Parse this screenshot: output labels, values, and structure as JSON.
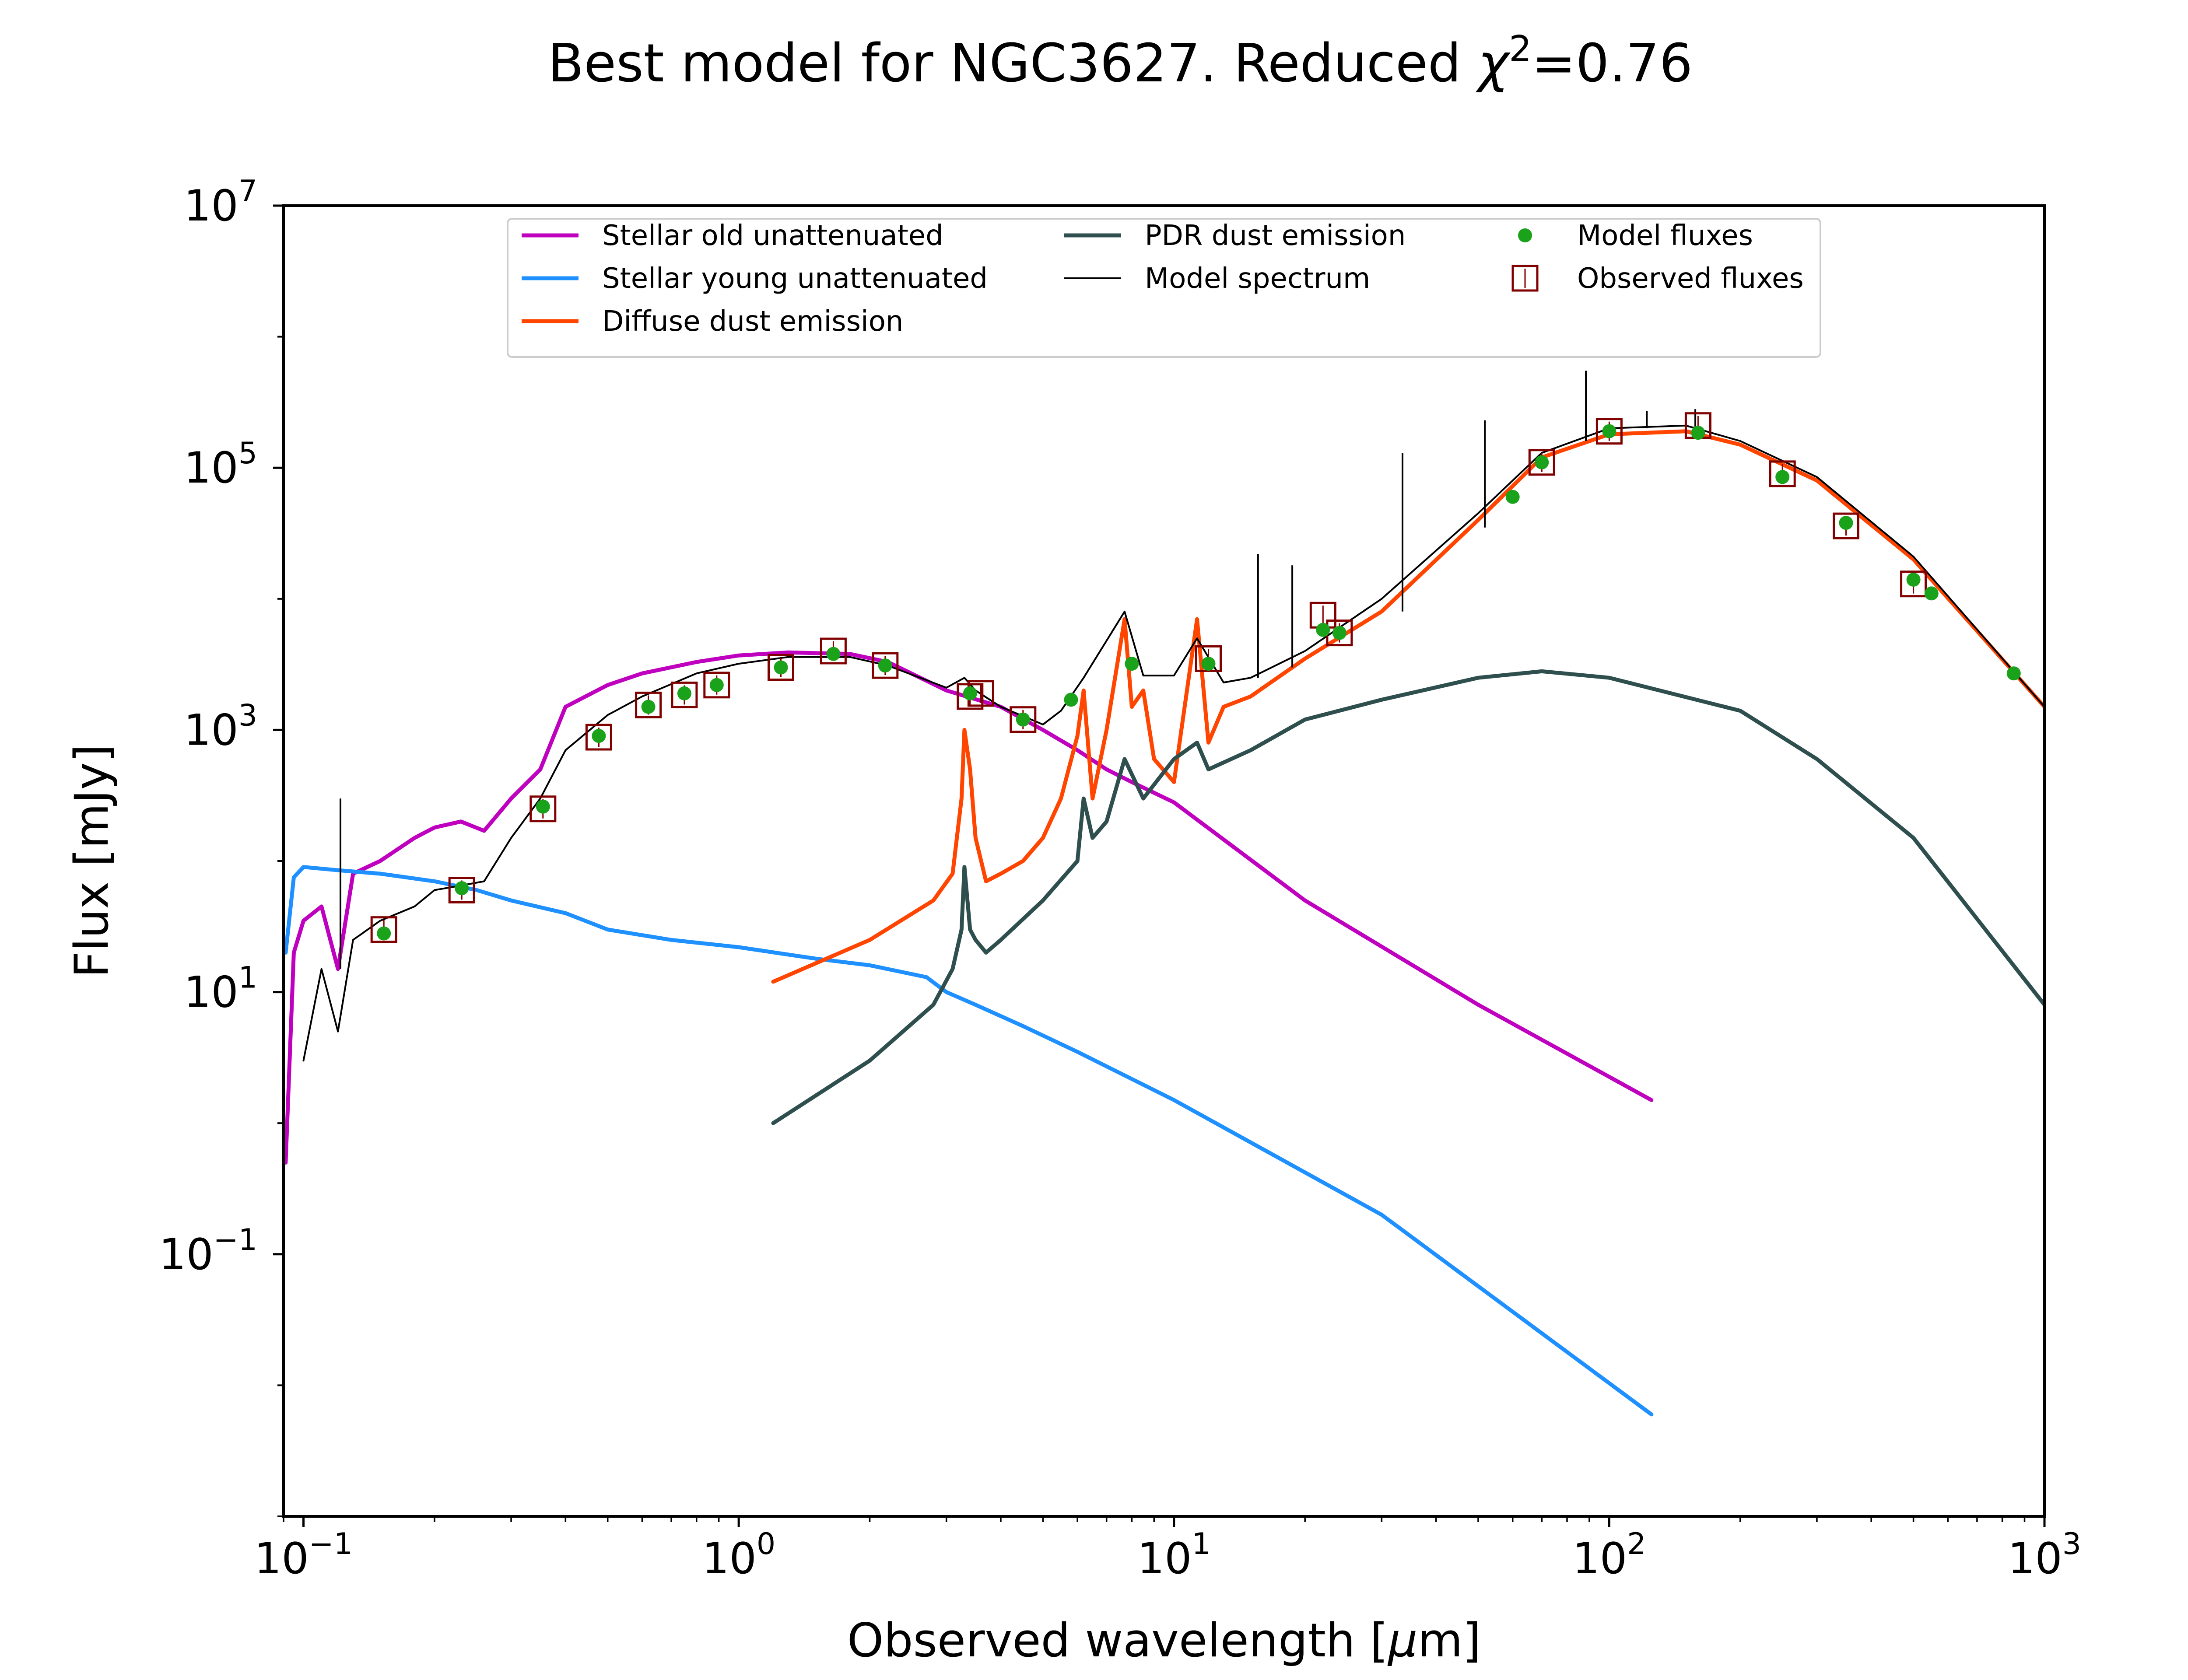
{
  "chart_data": {
    "type": "line",
    "title": "Best model for NGC3627. Reduced χ²=0.76",
    "title_parts": {
      "prefix": "Best model for NGC3627. Reduced ",
      "chi": "χ",
      "sup": "2",
      "suffix": "=0.76"
    },
    "xlabel": "Observed wavelength [μm]",
    "xlabel_parts": {
      "prefix": "Observed wavelength [",
      "mu": "μ",
      "suffix": "m]"
    },
    "ylabel": "Flux [mJy]",
    "xscale": "log",
    "yscale": "log",
    "xlim": [
      0.09,
      1000
    ],
    "ylim": [
      0.001,
      10000000
    ],
    "x_ticks": [
      {
        "value": 0.1,
        "base": "10",
        "exp": "−1"
      },
      {
        "value": 1,
        "base": "10",
        "exp": "0"
      },
      {
        "value": 10,
        "base": "10",
        "exp": "1"
      },
      {
        "value": 100,
        "base": "10",
        "exp": "2"
      },
      {
        "value": 1000,
        "base": "10",
        "exp": "3"
      }
    ],
    "y_ticks": [
      {
        "value": 0.1,
        "base": "10",
        "exp": "−1"
      },
      {
        "value": 10,
        "base": "10",
        "exp": "1"
      },
      {
        "value": 1000,
        "base": "10",
        "exp": "3"
      },
      {
        "value": 100000,
        "base": "10",
        "exp": "5"
      },
      {
        "value": 10000000,
        "base": "10",
        "exp": "7"
      }
    ],
    "grid": false,
    "legend_position": "top",
    "series": [
      {
        "name": "Stellar old unattenuated",
        "color": "#bf00bf",
        "x": [
          0.091,
          0.095,
          0.1,
          0.11,
          0.12,
          0.13,
          0.15,
          0.18,
          0.2,
          0.23,
          0.26,
          0.3,
          0.35,
          0.4,
          0.5,
          0.6,
          0.8,
          1.0,
          1.3,
          1.8,
          2.2,
          3.0,
          4.0,
          5.0,
          6.0,
          7.0,
          8.0,
          10,
          20,
          50,
          125
        ],
        "y": [
          0.5,
          20,
          35,
          45,
          15,
          80,
          100,
          150,
          180,
          200,
          170,
          300,
          500,
          1500,
          2200,
          2700,
          3300,
          3700,
          3900,
          3800,
          3300,
          2000,
          1500,
          1000,
          700,
          500,
          400,
          280,
          50,
          8,
          1.5
        ]
      },
      {
        "name": "Stellar young unattenuated",
        "color": "#1e90ff",
        "x": [
          0.091,
          0.095,
          0.1,
          0.12,
          0.15,
          0.2,
          0.25,
          0.3,
          0.4,
          0.5,
          0.7,
          1.0,
          1.5,
          2.0,
          2.7,
          3.0,
          3.5,
          4.5,
          6.0,
          10,
          30,
          125
        ],
        "y": [
          20,
          75,
          90,
          85,
          80,
          70,
          60,
          50,
          40,
          30,
          25,
          22,
          18,
          16,
          13,
          10,
          8,
          5.5,
          3.5,
          1.5,
          0.2,
          0.006
        ]
      },
      {
        "name": "Diffuse dust emission",
        "color": "#ff4500",
        "x": [
          1.2,
          2.0,
          2.8,
          3.1,
          3.25,
          3.3,
          3.4,
          3.5,
          3.7,
          4.0,
          4.5,
          5.0,
          5.5,
          6.0,
          6.2,
          6.5,
          7.0,
          7.7,
          8.0,
          8.5,
          9.0,
          10,
          11.3,
          12,
          13,
          15,
          20,
          30,
          50,
          70,
          100,
          150,
          200,
          300,
          500,
          1000
        ],
        "y": [
          12,
          25,
          50,
          80,
          300,
          1000,
          500,
          150,
          70,
          80,
          100,
          150,
          300,
          900,
          2000,
          300,
          1000,
          7000,
          1500,
          2000,
          600,
          400,
          7000,
          800,
          1500,
          1800,
          3500,
          8000,
          40000,
          120000,
          180000,
          190000,
          150000,
          80000,
          20000,
          1500
        ]
      },
      {
        "name": "PDR dust emission",
        "color": "#2f4f4f",
        "x": [
          1.2,
          2.0,
          2.8,
          3.1,
          3.25,
          3.3,
          3.4,
          3.5,
          3.7,
          4.0,
          5.0,
          6.0,
          6.2,
          6.5,
          7.0,
          7.7,
          8.5,
          10,
          11.3,
          12,
          15,
          20,
          30,
          50,
          70,
          100,
          200,
          300,
          500,
          1000
        ],
        "y": [
          1,
          3,
          8,
          15,
          30,
          90,
          30,
          25,
          20,
          25,
          50,
          100,
          300,
          150,
          200,
          600,
          300,
          600,
          800,
          500,
          700,
          1200,
          1700,
          2500,
          2800,
          2500,
          1400,
          600,
          150,
          8
        ]
      },
      {
        "name": "Model spectrum",
        "color": "#000000",
        "x": [
          0.1,
          0.11,
          0.12,
          0.13,
          0.15,
          0.18,
          0.2,
          0.23,
          0.26,
          0.3,
          0.35,
          0.4,
          0.5,
          0.6,
          0.8,
          1.0,
          1.3,
          1.8,
          2.2,
          3.0,
          3.3,
          3.5,
          4.0,
          5.0,
          5.5,
          6.2,
          7.7,
          8.5,
          10,
          11.3,
          13,
          15,
          20,
          30,
          50,
          70,
          100,
          150,
          200,
          300,
          500,
          1000
        ],
        "y": [
          3,
          15,
          5,
          25,
          35,
          45,
          60,
          65,
          70,
          150,
          300,
          700,
          1300,
          1800,
          2700,
          3200,
          3600,
          3600,
          3100,
          2100,
          2500,
          2000,
          1500,
          1100,
          1400,
          2500,
          8000,
          2600,
          2600,
          5000,
          2300,
          2500,
          4000,
          10000,
          45000,
          130000,
          200000,
          210000,
          160000,
          85000,
          21000,
          1500
        ]
      }
    ],
    "emission_lines": [
      {
        "x": 0.1216,
        "ymin": 15,
        "ymax": 300
      },
      {
        "x": 15.6,
        "ymin": 2500,
        "ymax": 22000
      },
      {
        "x": 18.7,
        "ymin": 3000,
        "ymax": 18000
      },
      {
        "x": 33.5,
        "ymin": 8000,
        "ymax": 130000
      },
      {
        "x": 51.8,
        "ymin": 35000,
        "ymax": 230000
      },
      {
        "x": 88.4,
        "ymin": 160000,
        "ymax": 550000
      },
      {
        "x": 122,
        "ymin": 200000,
        "ymax": 270000
      },
      {
        "x": 157.7,
        "ymin": 180000,
        "ymax": 280000
      }
    ],
    "model_fluxes": {
      "name": "Model fluxes",
      "color": "#1aa31a",
      "x": [
        0.153,
        0.231,
        0.355,
        0.477,
        0.62,
        0.75,
        0.89,
        1.25,
        1.65,
        2.17,
        3.4,
        4.5,
        5.8,
        8.0,
        12,
        22,
        24,
        60,
        70,
        100,
        160,
        250,
        350,
        500,
        550,
        850
      ],
      "y": [
        28,
        62,
        260,
        900,
        1500,
        1900,
        2200,
        3000,
        3800,
        3100,
        1900,
        1200,
        1700,
        3200,
        3200,
        5800,
        5500,
        60000,
        110000,
        190000,
        185000,
        85000,
        38000,
        14000,
        11000,
        2700
      ]
    },
    "observed_fluxes": {
      "name": "Observed fluxes",
      "color": "#800000",
      "x": [
        0.153,
        0.231,
        0.355,
        0.477,
        0.62,
        0.75,
        0.89,
        1.25,
        1.65,
        2.17,
        3.4,
        3.6,
        4.5,
        12,
        22,
        24,
        70,
        100,
        160,
        250,
        350,
        500
      ],
      "y": [
        30,
        60,
        250,
        880,
        1550,
        1850,
        2200,
        3000,
        4000,
        3100,
        1800,
        1900,
        1200,
        3500,
        7500,
        5500,
        110000,
        190000,
        210000,
        90000,
        36000,
        13000
      ]
    },
    "legend": [
      {
        "label": "Stellar old unattenuated",
        "kind": "line",
        "color": "#bf00bf"
      },
      {
        "label": "Stellar young unattenuated",
        "kind": "line",
        "color": "#1e90ff"
      },
      {
        "label": "Diffuse dust emission",
        "kind": "line",
        "color": "#ff4500"
      },
      {
        "label": "PDR dust emission",
        "kind": "line",
        "color": "#2f4f4f"
      },
      {
        "label": "Model spectrum",
        "kind": "thin-line",
        "color": "#000000"
      },
      {
        "label": "Model fluxes",
        "kind": "dot",
        "color": "#1aa31a"
      },
      {
        "label": "Observed fluxes",
        "kind": "square",
        "color": "#800000"
      }
    ]
  }
}
